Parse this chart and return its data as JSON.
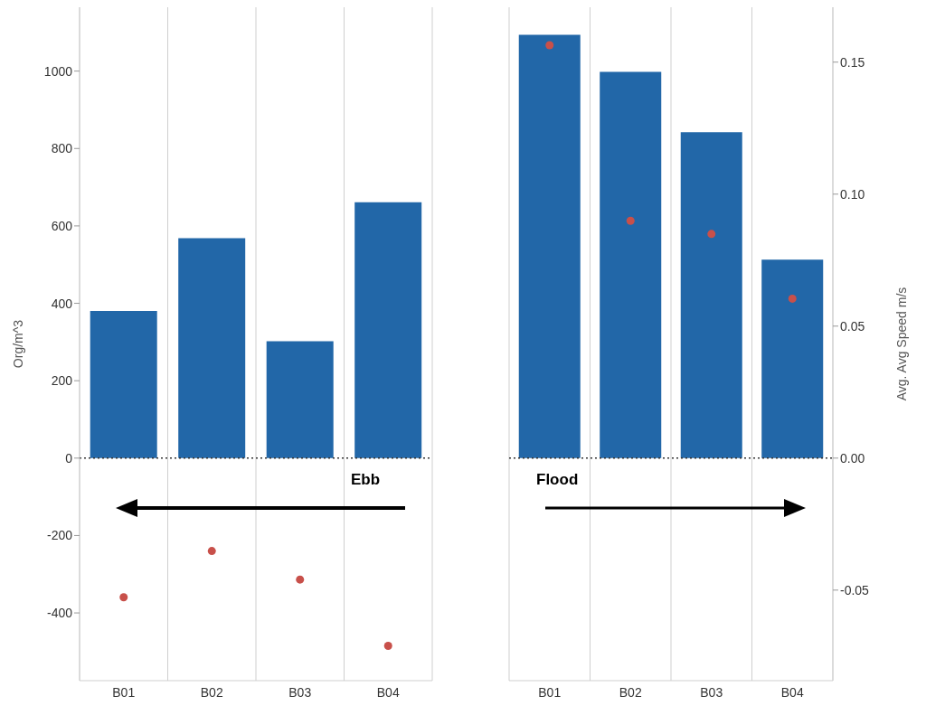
{
  "chart_data": [
    {
      "type": "bar",
      "categories": [
        "B01",
        "B02",
        "B03",
        "B04"
      ],
      "ylabel": "Org/m^3",
      "ylim": [
        -575,
        1165
      ],
      "yticks": [
        -400,
        -200,
        0,
        200,
        400,
        600,
        800,
        1000
      ],
      "y2lim": [
        -0.0843,
        0.1708
      ],
      "tick_labels": "xy",
      "grid": "x",
      "annotations": [
        "Ebb"
      ],
      "ref_lines": [
        {
          "axis": "y",
          "value": 0,
          "line_style": "dotted",
          "color": "#333333"
        }
      ],
      "series": [
        {
          "color": "#2267a8",
          "values": [
            380,
            568,
            302,
            661
          ]
        },
        {
          "type": "scatter",
          "axis": "y2",
          "color": "#c8504a",
          "marker": "circle",
          "values": [
            -0.0527,
            -0.0352,
            -0.046,
            -0.0711
          ]
        }
      ]
    },
    {
      "type": "bar",
      "categories": [
        "B01",
        "B02",
        "B03",
        "B04"
      ],
      "y2label": "Avg. Avg Speed m/s",
      "ylim": [
        -575,
        1165
      ],
      "y2lim": [
        -0.0843,
        0.1708
      ],
      "y2ticks": [
        {
          "value": -0.05,
          "label": "-0.05"
        },
        {
          "value": 0,
          "label": "0.00"
        },
        {
          "value": 0.05,
          "label": "0.05"
        },
        {
          "value": 0.1,
          "label": "0.10"
        },
        {
          "value": 0.15,
          "label": "0.15"
        }
      ],
      "tick_labels": "xy2",
      "grid": "x",
      "annotations": [
        "Flood"
      ],
      "ref_lines": [
        {
          "axis": "y",
          "value": 0,
          "line_style": "dotted",
          "color": "#333333"
        }
      ],
      "series": [
        {
          "color": "#2267a8",
          "values": [
            1094,
            998,
            842,
            513
          ]
        },
        {
          "type": "scatter",
          "axis": "y2",
          "color": "#c8504a",
          "marker": "circle",
          "values": [
            0.1564,
            0.0899,
            0.0849,
            0.0604
          ]
        }
      ]
    }
  ]
}
